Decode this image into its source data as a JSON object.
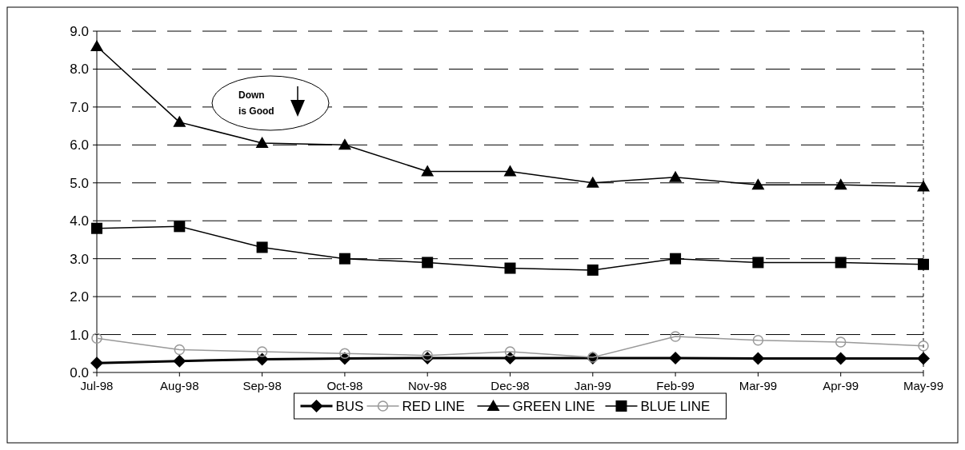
{
  "chart_data": {
    "type": "line",
    "categories": [
      "Jul-98",
      "Aug-98",
      "Sep-98",
      "Oct-98",
      "Nov-98",
      "Dec-98",
      "Jan-99",
      "Feb-99",
      "Mar-99",
      "Apr-99",
      "May-99"
    ],
    "series": [
      {
        "name": "BUS",
        "color": "#000000",
        "marker": "diamond",
        "values": [
          0.25,
          0.3,
          0.35,
          0.37,
          0.38,
          0.38,
          0.38,
          0.38,
          0.37,
          0.37,
          0.37
        ]
      },
      {
        "name": "RED LINE",
        "color": "#999999",
        "marker": "circle",
        "values": [
          0.9,
          0.6,
          0.55,
          0.5,
          0.45,
          0.55,
          0.4,
          0.95,
          0.85,
          0.8,
          0.7
        ]
      },
      {
        "name": "GREEN LINE",
        "color": "#000000",
        "marker": "triangle",
        "values": [
          8.6,
          6.6,
          6.05,
          6.0,
          5.3,
          5.3,
          5.0,
          5.15,
          4.95,
          4.95,
          4.9
        ]
      },
      {
        "name": "BLUE LINE",
        "color": "#000000",
        "marker": "square",
        "values": [
          3.8,
          3.85,
          3.3,
          3.0,
          2.9,
          2.75,
          2.7,
          3.0,
          2.9,
          2.9,
          2.85
        ]
      }
    ],
    "ylim": [
      0,
      9
    ],
    "yticks": [
      {
        "value": 0,
        "label": "0.0"
      },
      {
        "value": 1,
        "label": "1.0"
      },
      {
        "value": 2,
        "label": "2.0"
      },
      {
        "value": 3,
        "label": "3.0"
      },
      {
        "value": 4,
        "label": "4.0"
      },
      {
        "value": 5,
        "label": "5.0"
      },
      {
        "value": 6,
        "label": "6.0"
      },
      {
        "value": 7,
        "label": "7.0"
      },
      {
        "value": 8,
        "label": "8.0"
      },
      {
        "value": 9,
        "label": "9.0"
      }
    ],
    "grid": "y",
    "legend": "bottom",
    "line_style": "solid",
    "annotations": [
      "Down\nis Good"
    ]
  }
}
